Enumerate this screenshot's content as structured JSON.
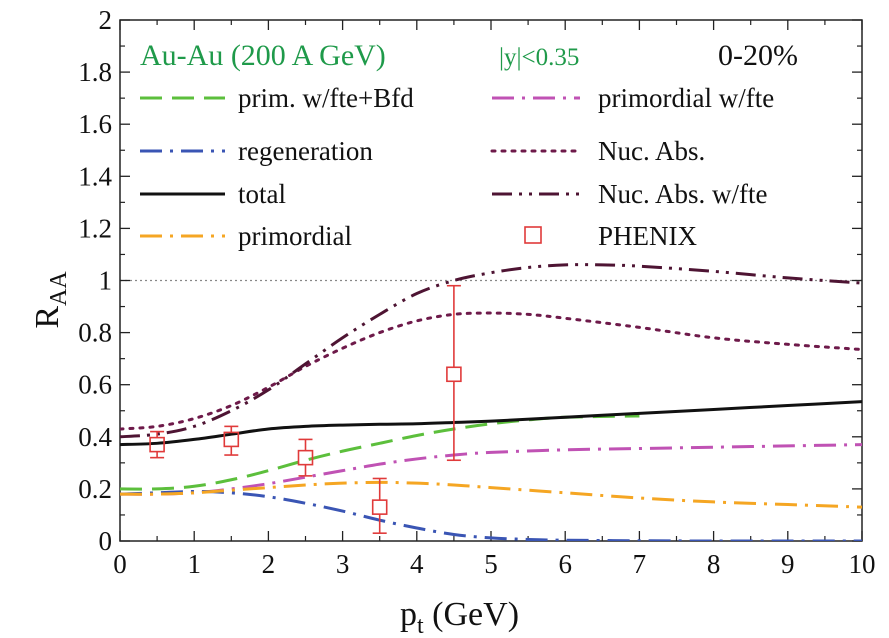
{
  "chart_data": {
    "type": "line",
    "title": "Au-Au (200 A GeV)",
    "subtitle": "|y|<0.35",
    "centrality": "0-20%",
    "title_color": "#1f9a4a",
    "xlabel_main": "p",
    "xlabel_sub": "t",
    "xlabel_unit": " (GeV)",
    "ylabel_main": "R",
    "ylabel_sub": "AA",
    "xlim": [
      0,
      10
    ],
    "ylim": [
      0,
      2
    ],
    "xticks": [
      "0",
      "1",
      "2",
      "3",
      "4",
      "5",
      "6",
      "7",
      "8",
      "9",
      "10"
    ],
    "yticks": [
      "0",
      "0.2",
      "0.4",
      "0.6",
      "0.8",
      "1",
      "1.2",
      "1.4",
      "1.6",
      "1.8",
      "2"
    ],
    "reference_line": 1,
    "grid": false,
    "series": [
      {
        "name": "prim. w/fte+Bfd",
        "color": "#5cbf3c",
        "style": "dashed",
        "x": [
          0,
          0.5,
          1,
          1.5,
          2,
          2.5,
          3,
          3.5,
          4,
          4.5,
          5,
          5.5,
          6,
          7
        ],
        "y": [
          0.2,
          0.2,
          0.21,
          0.235,
          0.27,
          0.31,
          0.345,
          0.375,
          0.405,
          0.43,
          0.45,
          0.465,
          0.475,
          0.48
        ]
      },
      {
        "name": "primordial w/fte",
        "color": "#c052b4",
        "style": "dashdot",
        "x": [
          0,
          0.5,
          1,
          1.5,
          2,
          2.5,
          3,
          3.5,
          4,
          4.5,
          5,
          6,
          7,
          8,
          9,
          10
        ],
        "y": [
          0.18,
          0.18,
          0.185,
          0.2,
          0.22,
          0.245,
          0.27,
          0.295,
          0.315,
          0.33,
          0.34,
          0.35,
          0.355,
          0.36,
          0.365,
          0.37
        ]
      },
      {
        "name": "regeneration",
        "color": "#3a55b4",
        "style": "dashdot",
        "x": [
          0,
          0.5,
          1,
          1.5,
          2,
          2.5,
          3,
          3.5,
          4,
          4.5,
          5,
          5.5,
          6,
          7,
          8,
          9,
          10
        ],
        "y": [
          0.18,
          0.185,
          0.19,
          0.185,
          0.17,
          0.145,
          0.115,
          0.08,
          0.05,
          0.025,
          0.012,
          0.006,
          0.003,
          0.001,
          0,
          0,
          0
        ]
      },
      {
        "name": "Nuc. Abs.",
        "color": "#6e1a4a",
        "style": "dotted",
        "x": [
          0,
          0.5,
          1,
          1.5,
          2,
          2.5,
          3,
          3.5,
          4,
          4.5,
          5,
          5.5,
          6,
          7,
          8,
          9,
          10
        ],
        "y": [
          0.43,
          0.44,
          0.47,
          0.52,
          0.59,
          0.67,
          0.74,
          0.8,
          0.845,
          0.87,
          0.875,
          0.87,
          0.855,
          0.82,
          0.78,
          0.755,
          0.735
        ]
      },
      {
        "name": "total",
        "color": "#111111",
        "style": "solid",
        "x": [
          0,
          0.5,
          1,
          1.5,
          2,
          2.5,
          3,
          3.5,
          4,
          4.5,
          5,
          6,
          7,
          8,
          9,
          10
        ],
        "y": [
          0.37,
          0.375,
          0.39,
          0.41,
          0.43,
          0.44,
          0.445,
          0.448,
          0.45,
          0.455,
          0.46,
          0.475,
          0.49,
          0.505,
          0.52,
          0.535
        ]
      },
      {
        "name": "Nuc. Abs. w/fte",
        "color": "#4e1433",
        "style": "dashdotdot",
        "x": [
          0,
          0.5,
          1,
          1.5,
          2,
          2.5,
          3,
          3.5,
          4,
          4.5,
          5,
          5.5,
          6,
          6.5,
          7,
          8,
          9,
          10
        ],
        "y": [
          0.4,
          0.41,
          0.44,
          0.5,
          0.58,
          0.68,
          0.78,
          0.87,
          0.95,
          1.0,
          1.03,
          1.05,
          1.06,
          1.06,
          1.055,
          1.035,
          1.01,
          0.99
        ]
      },
      {
        "name": "primordial",
        "color": "#f5a623",
        "style": "dashdot",
        "x": [
          0,
          0.5,
          1,
          1.5,
          2,
          2.5,
          3,
          3.5,
          4,
          4.5,
          5,
          6,
          7,
          8,
          9,
          10
        ],
        "y": [
          0.18,
          0.18,
          0.185,
          0.195,
          0.205,
          0.215,
          0.222,
          0.225,
          0.222,
          0.215,
          0.205,
          0.185,
          0.165,
          0.15,
          0.14,
          0.13
        ]
      }
    ],
    "data_points": {
      "name": "PHENIX",
      "color": "#e03a3a",
      "marker": "open-square",
      "points": [
        {
          "x": 0.5,
          "y": 0.37,
          "ylow": 0.32,
          "yhigh": 0.42
        },
        {
          "x": 1.5,
          "y": 0.39,
          "ylow": 0.33,
          "yhigh": 0.44
        },
        {
          "x": 2.5,
          "y": 0.32,
          "ylow": 0.25,
          "yhigh": 0.39
        },
        {
          "x": 3.5,
          "y": 0.13,
          "ylow": 0.03,
          "yhigh": 0.24
        },
        {
          "x": 4.5,
          "y": 0.64,
          "ylow": 0.31,
          "yhigh": 0.98
        }
      ]
    },
    "legend": {
      "left": [
        "prim. w/fte+Bfd",
        "regeneration",
        "total",
        "primordial"
      ],
      "right": [
        "primordial w/fte",
        "Nuc. Abs.",
        "Nuc. Abs. w/fte",
        "PHENIX"
      ]
    }
  }
}
